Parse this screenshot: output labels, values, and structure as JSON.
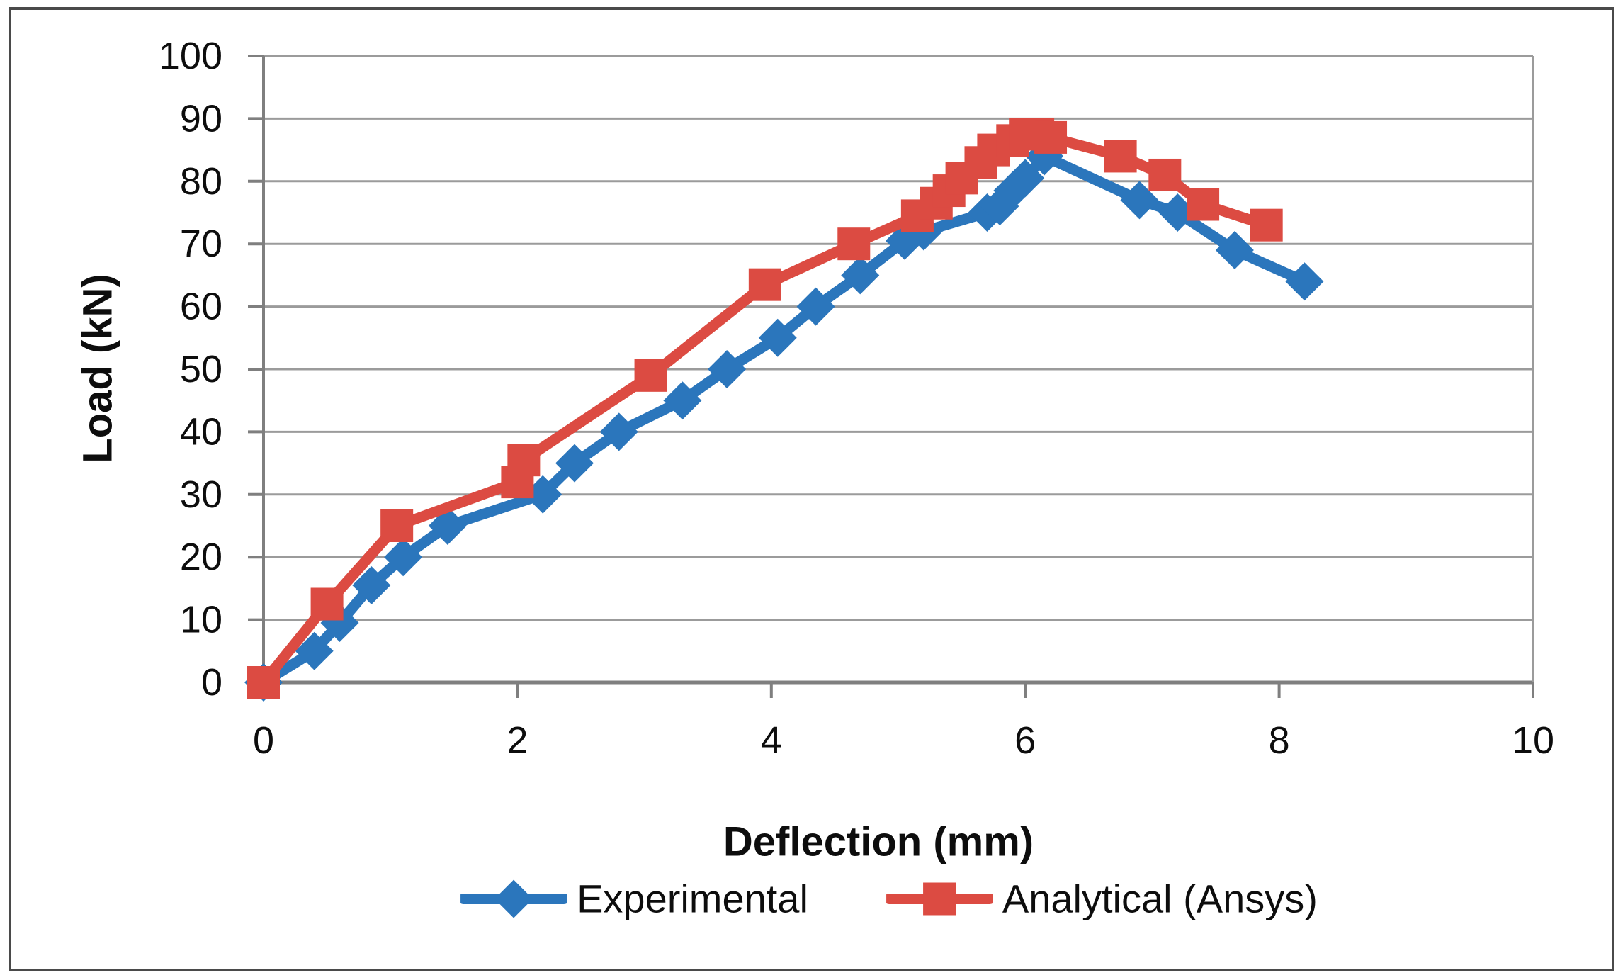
{
  "chart_data": {
    "type": "line",
    "title": "",
    "xlabel": "Deflection (mm)",
    "ylabel": "Load (kN)",
    "xlim": [
      0,
      10
    ],
    "ylim": [
      0,
      100
    ],
    "x_ticks": [
      0,
      2,
      4,
      6,
      8,
      10
    ],
    "y_ticks": [
      0,
      10,
      20,
      30,
      40,
      50,
      60,
      70,
      80,
      90,
      100
    ],
    "grid": "horizontal",
    "legend_position": "bottom",
    "series": [
      {
        "name": "Experimental",
        "color": "#2B76BC",
        "marker": "diamond",
        "points": [
          [
            0,
            0
          ],
          [
            0.4,
            5
          ],
          [
            0.6,
            9.5
          ],
          [
            0.85,
            15.5
          ],
          [
            1.1,
            20
          ],
          [
            1.45,
            25
          ],
          [
            2.2,
            30
          ],
          [
            2.45,
            35
          ],
          [
            2.8,
            40
          ],
          [
            3.3,
            45
          ],
          [
            3.65,
            50
          ],
          [
            4.05,
            55
          ],
          [
            4.35,
            60
          ],
          [
            4.7,
            65
          ],
          [
            5.05,
            70.5
          ],
          [
            5.2,
            72
          ],
          [
            5.7,
            75
          ],
          [
            5.8,
            76
          ],
          [
            5.9,
            78.5
          ],
          [
            6.0,
            80.5
          ],
          [
            6.15,
            84
          ],
          [
            6.9,
            77
          ],
          [
            7.2,
            75
          ],
          [
            7.65,
            69
          ],
          [
            8.2,
            64
          ]
        ]
      },
      {
        "name": "Analytical (Ansys)",
        "color": "#DC4B42",
        "marker": "square",
        "points": [
          [
            0,
            0
          ],
          [
            0.5,
            12.5
          ],
          [
            1.05,
            25
          ],
          [
            2.0,
            32
          ],
          [
            2.05,
            35.5
          ],
          [
            3.05,
            49
          ],
          [
            3.95,
            63.5
          ],
          [
            4.65,
            70
          ],
          [
            5.15,
            74.5
          ],
          [
            5.3,
            76.5
          ],
          [
            5.4,
            78.5
          ],
          [
            5.5,
            80.5
          ],
          [
            5.65,
            83
          ],
          [
            5.75,
            85
          ],
          [
            5.9,
            86.5
          ],
          [
            6.0,
            87.5
          ],
          [
            6.1,
            87.5
          ],
          [
            6.2,
            87
          ],
          [
            6.75,
            84
          ],
          [
            7.1,
            81
          ],
          [
            7.4,
            76.3
          ],
          [
            7.9,
            73
          ]
        ]
      }
    ]
  },
  "style": {
    "background": "#ffffff",
    "figure_border_color": "#4a4a4a",
    "grid_color": "#9b9b9b",
    "axis_color": "#7f7f7f",
    "tick_text_color": "#0d0d0d"
  }
}
